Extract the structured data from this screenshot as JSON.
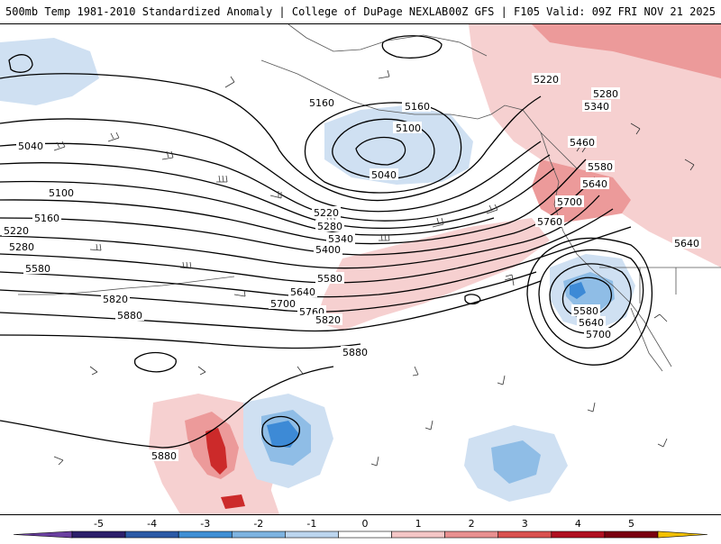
{
  "header": {
    "left": "500mb Temp 1981-2010 Standardized Anomaly | College of DuPage NEXLAB",
    "right": "00Z GFS | F105 Valid: 09Z FRI NOV 21 2025"
  },
  "contour_labels": [
    "5160",
    "5160",
    "5100",
    "5040",
    "5040",
    "5100",
    "5160",
    "5220",
    "5280",
    "5220",
    "5280",
    "5340",
    "5400",
    "5580",
    "5640",
    "5700",
    "5760",
    "5820",
    "5580",
    "5820",
    "5880",
    "5880",
    "5880",
    "5220",
    "5280",
    "5340",
    "5460",
    "5580",
    "5640",
    "5700",
    "5760",
    "5640",
    "5580",
    "5640",
    "5700"
  ],
  "colorbar": {
    "ticks": [
      "-5",
      "-4",
      "-3",
      "-2",
      "-1",
      "0",
      "1",
      "2",
      "3",
      "4",
      "5"
    ],
    "colors": [
      "#2c1f6b",
      "#2b5aa6",
      "#3f8fd4",
      "#7eb3e0",
      "#bcd5ee",
      "#ffffff",
      "#f4c6c6",
      "#e89090",
      "#d9514f",
      "#b01020",
      "#7a0010"
    ],
    "end_left_color": "#6a3fa0",
    "end_right_color": "#f2c000"
  },
  "colors": {
    "warm_light": "#f6d0d0",
    "warm_mid": "#ec9a9a",
    "warm_strong": "#cc2a2a",
    "cool_light": "#cfe0f2",
    "cool_mid": "#8fbde6",
    "cool_strong": "#3d8ad6"
  }
}
